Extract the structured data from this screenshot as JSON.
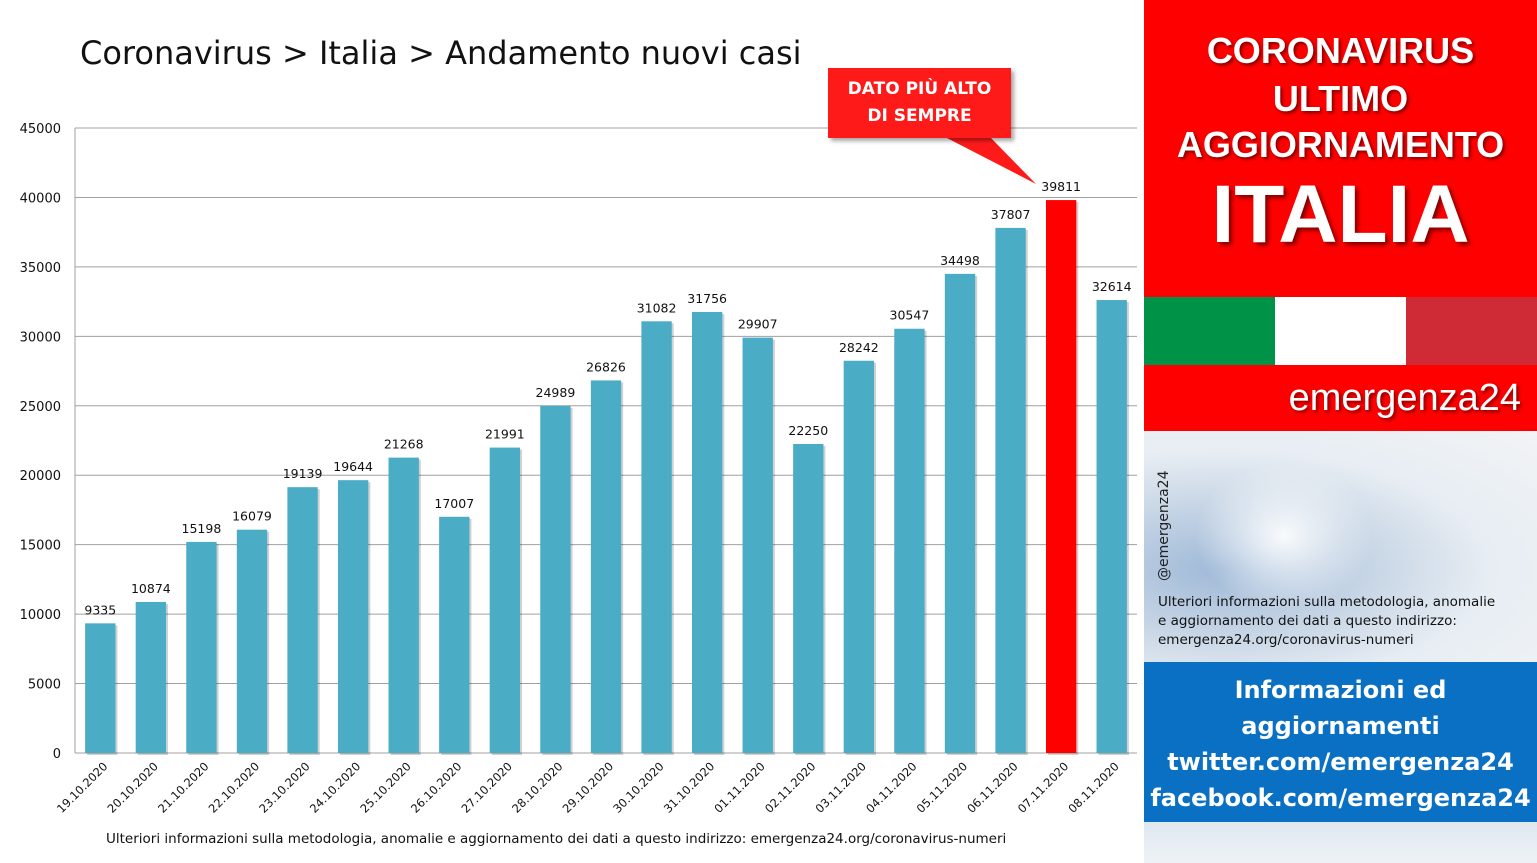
{
  "title": "Coronavirus > Italia > Andamento nuovi casi",
  "callout": {
    "line1": "DATO PIÙ ALTO",
    "line2": "DI SEMPRE"
  },
  "footnote": "Ulteriori informazioni sulla metodologia, anomalie e aggiornamento dei dati a questo indirizzo: emergenza24.org/coronavirus-numeri",
  "panel": {
    "line1": "CORONAVIRUS",
    "line2": "ULTIMO",
    "line3": "AGGIORNAMENTO",
    "line4": "ITALIA",
    "brand": "emergenza24",
    "handle": "@emergenza24",
    "info_line1": "Ulteriori informazioni sulla metodologia, anomalie",
    "info_line2": "e aggiornamento dei dati a questo indirizzo:",
    "info_line3": "emergenza24.org/coronavirus-numeri",
    "blue_line1": "Informazioni ed",
    "blue_line2": "aggiornamenti",
    "blue_line3": "twitter.com/emergenza24",
    "blue_line4": "facebook.com/emergenza24"
  },
  "colors": {
    "bar": "#4bacc6",
    "highlight_bar": "#ff0000",
    "flag_green": "#009246",
    "flag_white": "#ffffff",
    "flag_red": "#ce2b37"
  },
  "chart_data": {
    "type": "bar",
    "categories": [
      "19.10.2020",
      "20.10.2020",
      "21.10.2020",
      "22.10.2020",
      "23.10.2020",
      "24.10.2020",
      "25.10.2020",
      "26.10.2020",
      "27.10.2020",
      "28.10.2020",
      "29.10.2020",
      "30.10.2020",
      "31.10.2020",
      "01.11.2020",
      "02.11.2020",
      "03.11.2020",
      "04.11.2020",
      "05.11.2020",
      "06.11.2020",
      "07.11.2020",
      "08.11.2020"
    ],
    "values": [
      9335,
      10874,
      15198,
      16079,
      19139,
      19644,
      21268,
      17007,
      21991,
      24989,
      26826,
      31082,
      31756,
      29907,
      22250,
      28242,
      30547,
      34498,
      37807,
      39811,
      32614
    ],
    "highlight_index": 19,
    "ylim": [
      0,
      45000
    ],
    "yticks": [
      0,
      5000,
      10000,
      15000,
      20000,
      25000,
      30000,
      35000,
      40000,
      45000
    ],
    "grid": true,
    "data_labels": true
  }
}
